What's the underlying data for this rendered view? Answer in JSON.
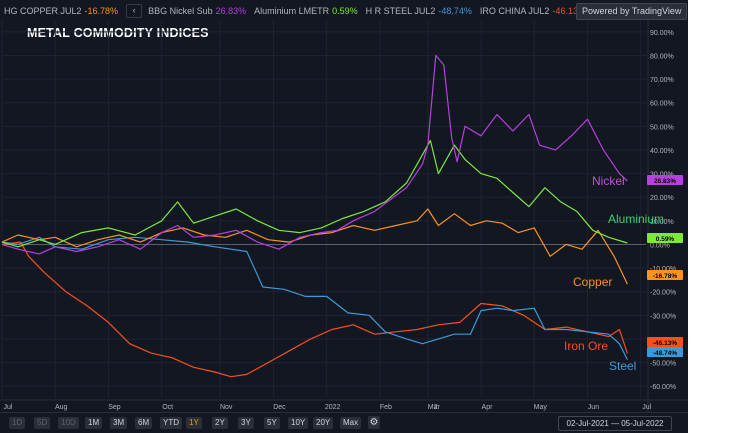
{
  "legend": [
    {
      "name": "HG COPPER JUL2",
      "value": "-16.78%",
      "color": "#f7931e"
    },
    {
      "name": "BBG Nickel Sub",
      "value": "26.83%",
      "color": "#b83fe0"
    },
    {
      "name": "Aluminium LMETR",
      "value": "0.59%",
      "color": "#7ce83c"
    },
    {
      "name": "H R STEEL JUL2",
      "value": "-48.74%",
      "color": "#3d9ad6"
    },
    {
      "name": "IRO CHINA JUL2",
      "value": "-46.13%",
      "color": "#f4511e"
    }
  ],
  "legend_toggle": "‹",
  "powered_by": "Powered by TradingView",
  "timebar": {
    "buttons": [
      "1D",
      "5D",
      "1M",
      "3M",
      "6M",
      "YTD",
      "1Y",
      "2Y",
      "3Y",
      "5Y",
      "10Y",
      "20Y",
      "Max"
    ],
    "dim_buttons": [
      "1D",
      "5D",
      "10D"
    ],
    "active": "1Y",
    "date_range": "02-Jul-2021  —  05-Jul-2022",
    "gear_icon": "gear-icon"
  },
  "chart_data": {
    "type": "line",
    "title": "METAL COMMODITY INDICES",
    "x_ticks": [
      "Jul",
      "Aug",
      "Sep",
      "Oct",
      "Nov",
      "Dec",
      "2022",
      "Feb",
      "Mar",
      "Apr",
      "May",
      "Jun",
      "Jul"
    ],
    "extra_x_tick": "2",
    "y_ticks": [
      "90.00%",
      "80.00%",
      "70.00%",
      "60.00%",
      "50.00%",
      "40.00%",
      "30.00%",
      "20.00%",
      "10.00%",
      "0.00%",
      "-10.00%",
      "-20.00%",
      "-30.00%",
      "-40.00%",
      "-50.00%",
      "-60.00%"
    ],
    "ylim": [
      -60,
      90
    ],
    "grid": true,
    "x_unit": "months since 02-Jul-2021",
    "xlim": [
      0,
      12.1
    ],
    "series": [
      {
        "name": "Nickel",
        "color": "#b83fe0",
        "last": "26.83%",
        "label_color": "#c050e8",
        "points": [
          [
            0,
            0
          ],
          [
            0.3,
            -2
          ],
          [
            0.7,
            -4
          ],
          [
            1.0,
            -1
          ],
          [
            1.4,
            -3
          ],
          [
            1.8,
            -1
          ],
          [
            2.2,
            2
          ],
          [
            2.6,
            -2
          ],
          [
            3.0,
            5
          ],
          [
            3.3,
            8
          ],
          [
            3.6,
            3
          ],
          [
            4.0,
            4
          ],
          [
            4.4,
            6
          ],
          [
            4.8,
            1
          ],
          [
            5.2,
            -2
          ],
          [
            5.6,
            3
          ],
          [
            6.0,
            5
          ],
          [
            6.3,
            6
          ],
          [
            6.6,
            10
          ],
          [
            7.0,
            14
          ],
          [
            7.3,
            19
          ],
          [
            7.6,
            24
          ],
          [
            7.9,
            34
          ],
          [
            8.0,
            42
          ],
          [
            8.15,
            80
          ],
          [
            8.3,
            76
          ],
          [
            8.45,
            45
          ],
          [
            8.55,
            35
          ],
          [
            8.7,
            50
          ],
          [
            9.0,
            46
          ],
          [
            9.3,
            55
          ],
          [
            9.6,
            48
          ],
          [
            9.9,
            55
          ],
          [
            10.1,
            42
          ],
          [
            10.4,
            40
          ],
          [
            10.7,
            46
          ],
          [
            11.0,
            53
          ],
          [
            11.3,
            40
          ],
          [
            11.6,
            30
          ],
          [
            11.75,
            26.83
          ]
        ]
      },
      {
        "name": "Aluminium",
        "color": "#7ce83c",
        "last": "0.59%",
        "label_color": "#3cd070",
        "points": [
          [
            0,
            1
          ],
          [
            0.3,
            -1
          ],
          [
            0.7,
            2
          ],
          [
            1.0,
            0
          ],
          [
            1.5,
            5
          ],
          [
            2.0,
            7
          ],
          [
            2.5,
            4
          ],
          [
            3.0,
            10
          ],
          [
            3.3,
            18
          ],
          [
            3.6,
            9
          ],
          [
            4.0,
            12
          ],
          [
            4.4,
            15
          ],
          [
            4.8,
            10
          ],
          [
            5.2,
            6
          ],
          [
            5.6,
            5
          ],
          [
            6.0,
            7
          ],
          [
            6.4,
            11
          ],
          [
            6.8,
            14
          ],
          [
            7.2,
            18
          ],
          [
            7.6,
            26
          ],
          [
            7.9,
            38
          ],
          [
            8.05,
            44
          ],
          [
            8.2,
            30
          ],
          [
            8.5,
            42
          ],
          [
            8.7,
            36
          ],
          [
            9.0,
            30
          ],
          [
            9.3,
            28
          ],
          [
            9.6,
            22
          ],
          [
            9.9,
            16
          ],
          [
            10.2,
            24
          ],
          [
            10.5,
            18
          ],
          [
            10.8,
            14
          ],
          [
            11.1,
            6
          ],
          [
            11.4,
            3
          ],
          [
            11.75,
            0.59
          ]
        ]
      },
      {
        "name": "Copper",
        "color": "#f7931e",
        "last": "-16.78%",
        "label_color": "#f7931e",
        "points": [
          [
            0,
            1
          ],
          [
            0.3,
            4
          ],
          [
            0.7,
            2
          ],
          [
            1.0,
            3
          ],
          [
            1.4,
            -1
          ],
          [
            1.8,
            2
          ],
          [
            2.2,
            4
          ],
          [
            2.6,
            1
          ],
          [
            3.0,
            5
          ],
          [
            3.4,
            7
          ],
          [
            3.8,
            4
          ],
          [
            4.2,
            3
          ],
          [
            4.6,
            6
          ],
          [
            5.0,
            2
          ],
          [
            5.4,
            1
          ],
          [
            5.8,
            4
          ],
          [
            6.2,
            5
          ],
          [
            6.6,
            8
          ],
          [
            7.0,
            6
          ],
          [
            7.4,
            8
          ],
          [
            7.8,
            10
          ],
          [
            8.0,
            15
          ],
          [
            8.2,
            8
          ],
          [
            8.5,
            13
          ],
          [
            8.8,
            8
          ],
          [
            9.1,
            10
          ],
          [
            9.4,
            9
          ],
          [
            9.7,
            5
          ],
          [
            10.0,
            7
          ],
          [
            10.3,
            -5
          ],
          [
            10.6,
            0
          ],
          [
            10.9,
            -2
          ],
          [
            11.2,
            6
          ],
          [
            11.5,
            -5
          ],
          [
            11.75,
            -16.78
          ]
        ]
      },
      {
        "name": "Iron Ore",
        "color": "#f4511e",
        "last": "-46.13%",
        "label_color": "#f4511e",
        "points": [
          [
            0,
            0
          ],
          [
            0.35,
            1
          ],
          [
            0.5,
            -5
          ],
          [
            0.8,
            -12
          ],
          [
            1.2,
            -20
          ],
          [
            1.6,
            -26
          ],
          [
            2.0,
            -33
          ],
          [
            2.4,
            -42
          ],
          [
            2.8,
            -46
          ],
          [
            3.2,
            -48
          ],
          [
            3.6,
            -52
          ],
          [
            4.0,
            -54
          ],
          [
            4.3,
            -56
          ],
          [
            4.6,
            -55
          ],
          [
            5.0,
            -50
          ],
          [
            5.4,
            -45
          ],
          [
            5.8,
            -40
          ],
          [
            6.2,
            -36
          ],
          [
            6.6,
            -34
          ],
          [
            7.0,
            -38
          ],
          [
            7.4,
            -37
          ],
          [
            7.8,
            -36
          ],
          [
            8.2,
            -34
          ],
          [
            8.6,
            -33
          ],
          [
            9.0,
            -25
          ],
          [
            9.4,
            -26
          ],
          [
            9.8,
            -30
          ],
          [
            10.2,
            -36
          ],
          [
            10.6,
            -35
          ],
          [
            11.0,
            -37
          ],
          [
            11.4,
            -39
          ],
          [
            11.6,
            -36
          ],
          [
            11.75,
            -46.13
          ]
        ]
      },
      {
        "name": "Steel",
        "color": "#3d9ad6",
        "last": "-48.74%",
        "label_color": "#3d9ad6",
        "points": [
          [
            0,
            1
          ],
          [
            0.3,
            0
          ],
          [
            0.7,
            3
          ],
          [
            1.0,
            -1
          ],
          [
            1.5,
            -2
          ],
          [
            2.0,
            2
          ],
          [
            2.5,
            3
          ],
          [
            3.0,
            2
          ],
          [
            3.5,
            1
          ],
          [
            4.0,
            -1
          ],
          [
            4.6,
            -3
          ],
          [
            4.9,
            -18
          ],
          [
            5.3,
            -19
          ],
          [
            5.7,
            -22
          ],
          [
            6.1,
            -22
          ],
          [
            6.5,
            -29
          ],
          [
            6.9,
            -30
          ],
          [
            7.2,
            -37
          ],
          [
            7.6,
            -40
          ],
          [
            7.9,
            -42
          ],
          [
            8.2,
            -40
          ],
          [
            8.5,
            -38
          ],
          [
            8.8,
            -38
          ],
          [
            9.0,
            -28
          ],
          [
            9.3,
            -27
          ],
          [
            9.6,
            -28
          ],
          [
            10.0,
            -27
          ],
          [
            10.2,
            -36
          ],
          [
            10.6,
            -36
          ],
          [
            11.0,
            -37
          ],
          [
            11.4,
            -38
          ],
          [
            11.6,
            -42
          ],
          [
            11.75,
            -48.74
          ]
        ]
      }
    ]
  }
}
